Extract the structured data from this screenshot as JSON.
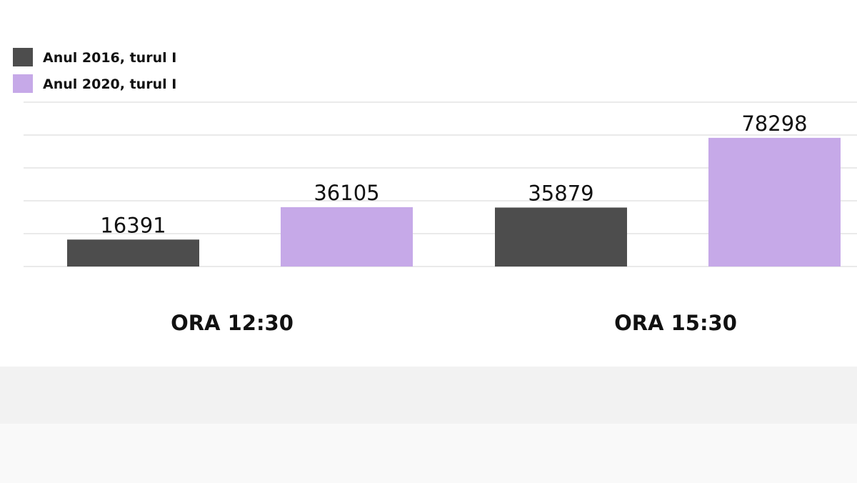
{
  "chart_data": {
    "type": "bar",
    "categories": [
      "ORA 12:30",
      "ORA 15:30"
    ],
    "series": [
      {
        "name": "Anul 2016, turul I",
        "color": "#4d4d4d",
        "values": [
          16391,
          35879
        ]
      },
      {
        "name": "Anul 2020, turul I",
        "color": "#c6a9e8",
        "values": [
          36105,
          78298
        ]
      }
    ],
    "ylim": [
      0,
      100000
    ],
    "grid": true,
    "legend_position": "top-left"
  }
}
